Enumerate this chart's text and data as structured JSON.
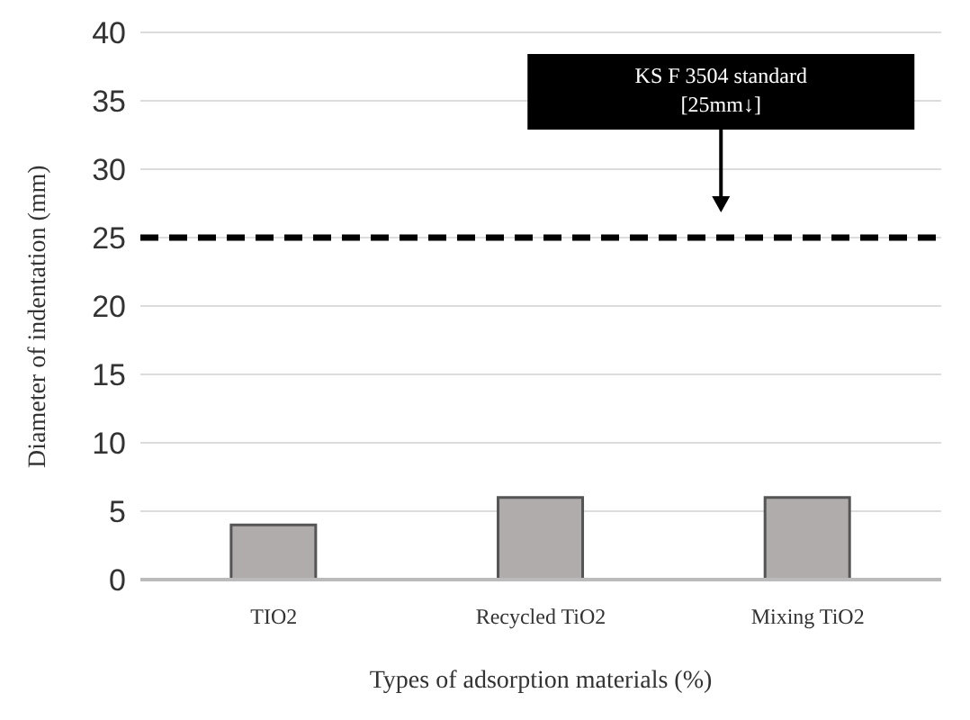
{
  "chart_data": {
    "type": "bar",
    "xlabel": "Types of adsorption materials (%)",
    "ylabel": "Diameter of indentation (mm)",
    "categories": [
      "TIO2",
      "Recycled TiO2",
      "Mixing TiO2"
    ],
    "values": [
      4,
      6,
      6
    ],
    "color": "#b0acab",
    "ylim": [
      0,
      40
    ],
    "yticks": [
      0,
      5,
      10,
      15,
      20,
      25,
      30,
      35,
      40
    ],
    "grid": "y",
    "ref_lines": [
      {
        "axis": "y",
        "value": 25,
        "color": "#000000",
        "line_style": "dashed"
      }
    ],
    "annotations": [
      "KS F 3504 standard\n[25mm↓]"
    ]
  }
}
